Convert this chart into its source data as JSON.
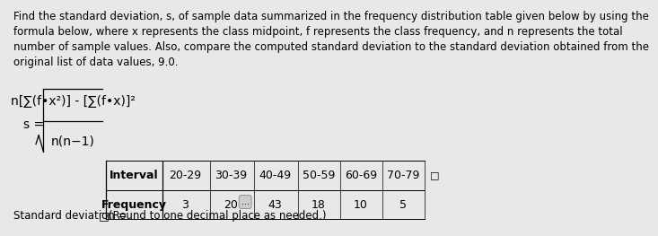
{
  "bg_color": "#e8e8e8",
  "text_color": "#000000",
  "paragraph": "Find the standard deviation, s, of sample data summarized in the frequency distribution table given below by using the\nformula below, where x represents the class midpoint, f represents the class frequency, and n represents the total\nnumber of sample values. Also, compare the computed standard deviation to the standard deviation obtained from the\noriginal list of data values, 9.0.",
  "formula_numerator": "n[∑(f•x²)] - [∑(f•x)]²",
  "formula_denominator": "n(n−1)",
  "intervals": [
    "Interval",
    "20-29",
    "30-39",
    "40-49",
    "50-59",
    "60-69",
    "70-79"
  ],
  "frequencies": [
    "Frequency",
    "3",
    "20",
    "43",
    "18",
    "10",
    "5"
  ],
  "bottom_text": "Standard deviation = ",
  "bottom_suffix": "(Round to one decimal place as needed.)",
  "ellipsis": "...",
  "font_size_para": 8.5,
  "font_size_table": 9.0,
  "font_size_formula": 10,
  "font_size_bottom": 8.5
}
